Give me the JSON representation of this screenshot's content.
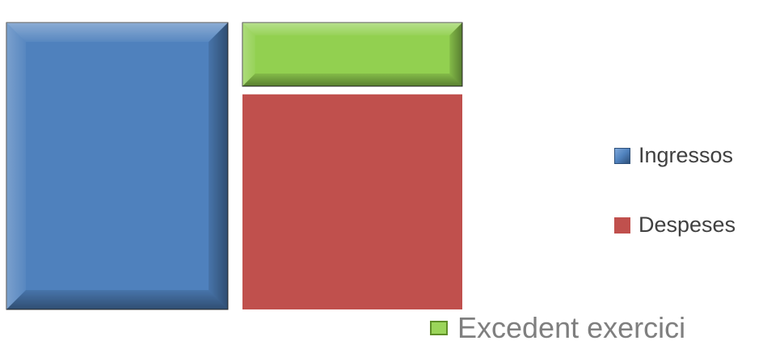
{
  "chart_data": {
    "type": "bar",
    "stacked": true,
    "categories": [
      "",
      ""
    ],
    "series": [
      {
        "name": "Ingressos",
        "color": "#4f81bd",
        "values": [
          100,
          0
        ]
      },
      {
        "name": "Despeses",
        "color": "#c0504d",
        "values": [
          0,
          75
        ]
      },
      {
        "name": "Excedent exercici",
        "color": "#92d050",
        "values": [
          0,
          25
        ]
      }
    ],
    "title": "",
    "xlabel": "",
    "ylabel": "",
    "ylim": [
      0,
      100
    ],
    "grid": false,
    "axes_visible": false,
    "legend_position": "right"
  }
}
